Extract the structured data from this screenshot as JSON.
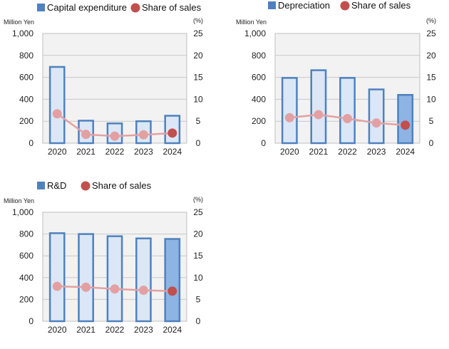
{
  "colors": {
    "bar_fill": "#dbe7f6",
    "bar_fill_highlight": "#8db4e3",
    "bar_stroke": "#4f81bd",
    "line": "#e3a0a3",
    "marker": "#e3a0a3",
    "marker_highlight": "#c0504d",
    "plot_bg": "#f2f2f2",
    "grid": "#c8c8c8",
    "legend_square": "#4f81bd",
    "legend_circle": "#c0504d"
  },
  "chart_data": [
    {
      "type": "bar",
      "title": "",
      "legend": [
        "Capital expenditure",
        "Share of sales"
      ],
      "left_unit": "Million Yen",
      "right_unit": "(%)",
      "categories": [
        "2020",
        "2021",
        "2022",
        "2023",
        "2024"
      ],
      "ylim": [
        0,
        1000
      ],
      "y_ticks": [
        "0",
        "200",
        "400",
        "600",
        "800",
        "1,000"
      ],
      "y2lim": [
        0,
        25
      ],
      "y2_ticks": [
        "0",
        "5",
        "10",
        "15",
        "20",
        "25"
      ],
      "series": [
        {
          "name": "Capital expenditure",
          "kind": "bar",
          "axis": "left",
          "values": [
            695,
            205,
            180,
            200,
            250
          ]
        },
        {
          "name": "Share of sales",
          "kind": "line",
          "axis": "right",
          "values": [
            6.7,
            2.0,
            1.6,
            1.9,
            2.3
          ]
        }
      ],
      "highlight_index": 4,
      "highlight_bar": false
    },
    {
      "type": "bar",
      "title": "",
      "legend": [
        "Depreciation",
        "Share of sales"
      ],
      "left_unit": "Million Yen",
      "right_unit": "(%)",
      "categories": [
        "2020",
        "2021",
        "2022",
        "2023",
        "2024"
      ],
      "ylim": [
        0,
        1000
      ],
      "y_ticks": [
        "0",
        "200",
        "400",
        "600",
        "800",
        "1,000"
      ],
      "y2lim": [
        0,
        25
      ],
      "y2_ticks": [
        "0",
        "5",
        "10",
        "15",
        "20",
        "25"
      ],
      "series": [
        {
          "name": "Depreciation",
          "kind": "bar",
          "axis": "left",
          "values": [
            595,
            665,
            595,
            490,
            440
          ]
        },
        {
          "name": "Share of sales",
          "kind": "line",
          "axis": "right",
          "values": [
            5.8,
            6.5,
            5.6,
            4.6,
            4.1
          ]
        }
      ],
      "highlight_index": 4,
      "highlight_bar": true
    },
    {
      "type": "bar",
      "title": "",
      "legend": [
        "R&D",
        "Share of sales"
      ],
      "left_unit": "Million Yen",
      "right_unit": "(%)",
      "categories": [
        "2020",
        "2021",
        "2022",
        "2023",
        "2024"
      ],
      "ylim": [
        0,
        1000
      ],
      "y_ticks": [
        "0",
        "200",
        "400",
        "600",
        "800",
        "1,000"
      ],
      "y2lim": [
        0,
        25
      ],
      "y2_ticks": [
        "0",
        "5",
        "10",
        "15",
        "20",
        "25"
      ],
      "series": [
        {
          "name": "R&D",
          "kind": "bar",
          "axis": "left",
          "values": [
            808,
            800,
            780,
            760,
            755
          ]
        },
        {
          "name": "Share of sales",
          "kind": "line",
          "axis": "right",
          "values": [
            8.0,
            7.8,
            7.4,
            7.1,
            6.9
          ]
        }
      ],
      "highlight_index": 4,
      "highlight_bar": true
    }
  ]
}
